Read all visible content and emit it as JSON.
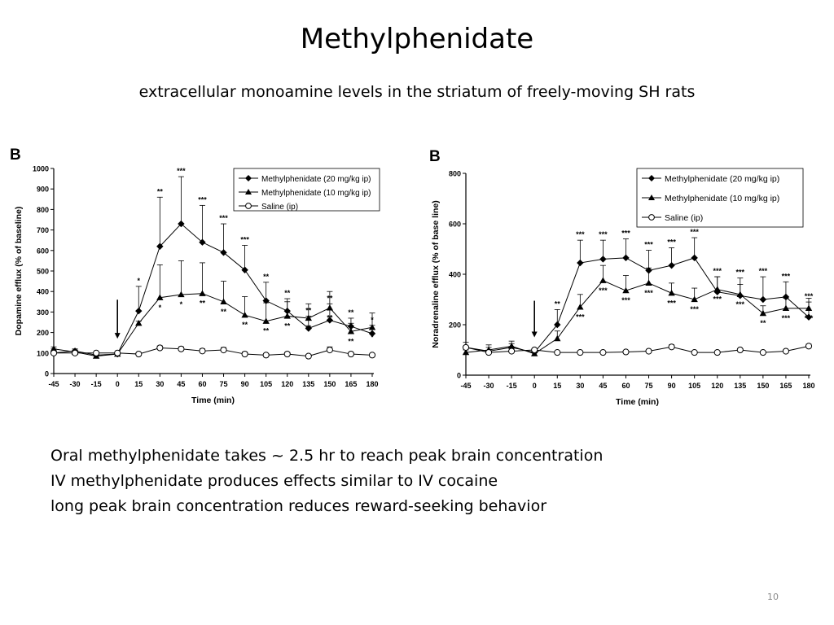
{
  "slide": {
    "title": "Methylphenidate",
    "subtitle": "extracellular monoamine levels in the striatum of freely-moving SH rats",
    "bullets": [
      "Oral methylphenidate takes ~ 2.5 hr to reach peak brain concentration",
      "IV methylphenidate produces effects similar to IV cocaine",
      "long peak brain concentration reduces reward-seeking behavior"
    ],
    "page_number": "10",
    "colors": {
      "ink": "#000000",
      "background": "#ffffff",
      "page_number": "#8a8a8a"
    }
  },
  "chart_data": [
    {
      "type": "line",
      "panel_label": "B",
      "ylabel": "Dopamine efflux (% of baseline)",
      "xlabel": "Time (min)",
      "x": [
        -45,
        -30,
        -15,
        0,
        15,
        30,
        45,
        60,
        75,
        90,
        105,
        120,
        135,
        150,
        165,
        180
      ],
      "xticks": [
        "-45",
        "-30",
        "-15",
        "0",
        "15",
        "30",
        "45",
        "60",
        "75",
        "90",
        "105",
        "120",
        "135",
        "150",
        "165",
        "180"
      ],
      "ylim": [
        0,
        1000
      ],
      "yticks": [
        "0",
        "100",
        "200",
        "300",
        "400",
        "500",
        "600",
        "700",
        "800",
        "900",
        "1000"
      ],
      "arrow_x": 0,
      "legend_position": "top-right",
      "series": [
        {
          "name": "Methylphenidate (20 mg/kg ip)",
          "marker": "diamond",
          "values": [
            100,
            110,
            90,
            95,
            305,
            620,
            730,
            640,
            590,
            505,
            355,
            305,
            220,
            260,
            230,
            195
          ],
          "errors": [
            20,
            10,
            10,
            10,
            120,
            240,
            230,
            180,
            140,
            120,
            90,
            60,
            60,
            80,
            40,
            40
          ],
          "sig": [
            null,
            null,
            null,
            null,
            "*",
            "**",
            "***",
            "***",
            "***",
            "***",
            "**",
            "**",
            "**",
            "**",
            "**",
            "*"
          ]
        },
        {
          "name": "Methylphenidate (10 mg/kg ip)",
          "marker": "triangle",
          "values": [
            120,
            105,
            85,
            95,
            245,
            370,
            385,
            390,
            350,
            285,
            255,
            280,
            270,
            320,
            205,
            225
          ],
          "errors": [
            10,
            10,
            10,
            10,
            10,
            160,
            165,
            150,
            100,
            90,
            90,
            70,
            70,
            80,
            40,
            70
          ],
          "sig": [
            null,
            null,
            null,
            null,
            null,
            "*",
            "*",
            "**",
            "**",
            "**",
            "**",
            "**",
            "**",
            "**",
            "**",
            "*"
          ]
        },
        {
          "name": "Saline (ip)",
          "marker": "circle",
          "values": [
            100,
            100,
            100,
            100,
            95,
            125,
            120,
            110,
            115,
            95,
            90,
            95,
            85,
            115,
            95,
            90
          ],
          "errors": [
            5,
            5,
            5,
            5,
            5,
            10,
            10,
            10,
            12,
            10,
            8,
            8,
            8,
            15,
            8,
            8
          ],
          "sig": [
            null,
            null,
            null,
            null,
            null,
            null,
            null,
            null,
            null,
            null,
            null,
            null,
            null,
            null,
            null,
            null
          ]
        }
      ]
    },
    {
      "type": "line",
      "panel_label": "B",
      "ylabel": "Noradrenaline efflux  (% of base line)",
      "xlabel": "Time (min)",
      "x": [
        -45,
        -30,
        -15,
        0,
        15,
        30,
        45,
        60,
        75,
        90,
        105,
        120,
        135,
        150,
        165,
        180
      ],
      "xticks": [
        "-45",
        "-30",
        "-15",
        "0",
        "15",
        "30",
        "45",
        "60",
        "75",
        "90",
        "105",
        "120",
        "135",
        "150",
        "165",
        "180"
      ],
      "ylim": [
        0,
        800
      ],
      "yticks": [
        "0",
        "200",
        "400",
        "600",
        "800"
      ],
      "arrow_x": 0,
      "legend_position": "top-right",
      "series": [
        {
          "name": "Methylphenidate (20 mg/kg ip)",
          "marker": "diamond",
          "values": [
            110,
            95,
            110,
            90,
            200,
            445,
            460,
            465,
            415,
            435,
            465,
            330,
            315,
            300,
            310,
            230
          ],
          "errors": [
            20,
            15,
            15,
            10,
            60,
            90,
            75,
            75,
            80,
            70,
            80,
            60,
            70,
            90,
            60,
            60
          ],
          "sig": [
            null,
            null,
            null,
            null,
            "**",
            "***",
            "***",
            "***",
            "***",
            "***",
            "***",
            "***",
            "***",
            "***",
            "***",
            "***"
          ]
        },
        {
          "name": "Methylphenidate (10 mg/kg ip)",
          "marker": "triangle",
          "values": [
            90,
            100,
            115,
            85,
            145,
            270,
            375,
            335,
            365,
            325,
            300,
            340,
            320,
            245,
            265,
            265
          ],
          "errors": [
            10,
            20,
            20,
            10,
            30,
            50,
            60,
            60,
            60,
            40,
            45,
            50,
            40,
            30,
            40,
            40
          ],
          "sig": [
            null,
            null,
            null,
            null,
            null,
            "***",
            "***",
            "***",
            "***",
            "***",
            "***",
            "***",
            "***",
            "**",
            "***",
            "***"
          ]
        },
        {
          "name": "Saline (ip)",
          "marker": "circle",
          "values": [
            110,
            90,
            95,
            100,
            90,
            90,
            90,
            92,
            95,
            112,
            90,
            90,
            100,
            90,
            95,
            115
          ],
          "errors": [
            5,
            5,
            5,
            5,
            5,
            5,
            5,
            5,
            5,
            8,
            5,
            5,
            5,
            5,
            5,
            8
          ],
          "sig": [
            null,
            null,
            null,
            null,
            null,
            null,
            null,
            null,
            null,
            null,
            null,
            null,
            null,
            null,
            null,
            null
          ]
        }
      ]
    }
  ]
}
